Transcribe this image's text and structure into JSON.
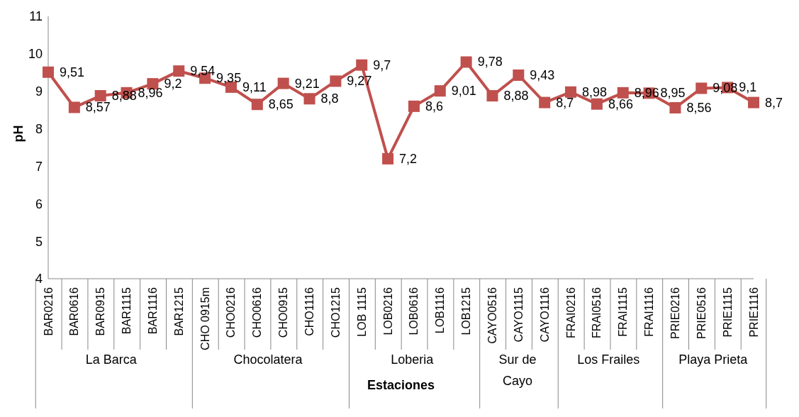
{
  "chart_data": {
    "type": "line",
    "ylabel": "pH",
    "xlabel": "Estaciones",
    "categories": [
      "BAR0216",
      "BAR0616",
      "BAR0915",
      "BAR1115",
      "BAR1116",
      "BAR1215",
      "CHO 0915m",
      "CHO0216",
      "CHO0616",
      "CHO0915",
      "CHO1116",
      "CHO1215",
      "LOB 1115",
      "LOB0216",
      "LOB0616",
      "LOB1116",
      "LOB1215",
      "CAYO0516",
      "CAYO1115",
      "CAYO1116",
      "FRAI0216",
      "FRAI0516",
      "FRAI1115",
      "FRAI1116",
      "PRIE0216",
      "PRIE0516",
      "PRIE1115",
      "PRIE1116"
    ],
    "values": [
      9.51,
      8.57,
      8.88,
      8.96,
      9.2,
      9.54,
      9.35,
      9.11,
      8.65,
      9.21,
      8.8,
      9.27,
      9.7,
      7.2,
      8.6,
      9.01,
      9.78,
      8.88,
      9.43,
      8.7,
      8.98,
      8.66,
      8.96,
      8.95,
      8.56,
      9.08,
      9.1,
      8.7
    ],
    "value_labels": [
      "9,51",
      "8,57",
      "8,88",
      "8,96",
      "9,2",
      "9,54",
      "9,35",
      "9,11",
      "8,65",
      "9,21",
      "8,8",
      "9,27",
      "9,7",
      "7,2",
      "8,6",
      "9,01",
      "9,78",
      "8,88",
      "9,43",
      "8,7",
      "8,98",
      "8,66",
      "8,96",
      "8,95",
      "8,56",
      "9,08",
      "9,1",
      "8,7"
    ],
    "color": "#c0504d",
    "marker": "square",
    "line_style": "solid",
    "ylim": [
      4,
      11
    ],
    "yticks": [
      4,
      5,
      6,
      7,
      8,
      9,
      10,
      11
    ],
    "grid": false,
    "legend": false,
    "annotations": [
      "La Barca",
      "Chocolatera",
      "Loberia",
      "Sur de Cayo",
      "Los Frailes",
      "Playa Prieta"
    ]
  }
}
